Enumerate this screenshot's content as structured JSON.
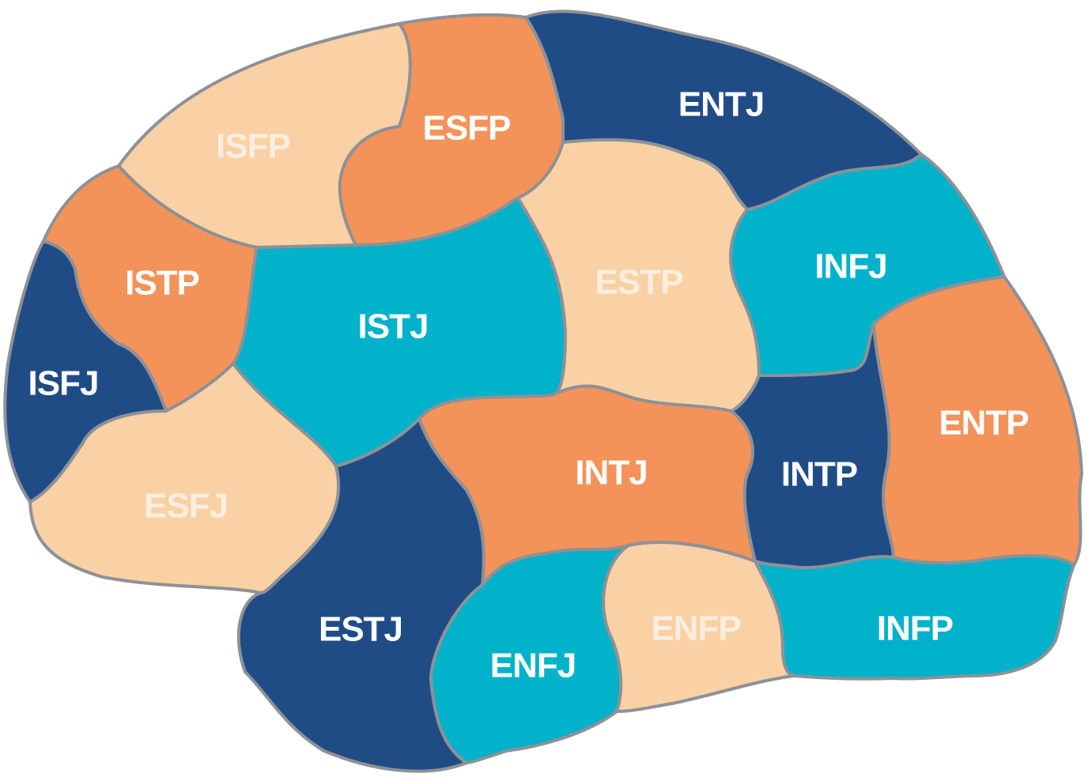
{
  "diagram": {
    "colors": {
      "navy": "#204c86",
      "cyan": "#01b2ca",
      "orange": "#f39359",
      "peach": "#f9d1a4",
      "outline": "#8e9196",
      "label_light": "#ffffff",
      "label_on_peach": "#fbeee0"
    },
    "regions": [
      {
        "key": "isfp",
        "label": "ISFP",
        "fill": "peach"
      },
      {
        "key": "esfp",
        "label": "ESFP",
        "fill": "orange"
      },
      {
        "key": "entj",
        "label": "ENTJ",
        "fill": "navy"
      },
      {
        "key": "istp",
        "label": "ISTP",
        "fill": "orange"
      },
      {
        "key": "istj",
        "label": "ISTJ",
        "fill": "cyan"
      },
      {
        "key": "estp",
        "label": "ESTP",
        "fill": "peach"
      },
      {
        "key": "infj",
        "label": "INFJ",
        "fill": "cyan"
      },
      {
        "key": "isfj",
        "label": "ISFJ",
        "fill": "navy"
      },
      {
        "key": "esfj",
        "label": "ESFJ",
        "fill": "peach"
      },
      {
        "key": "intj",
        "label": "INTJ",
        "fill": "orange"
      },
      {
        "key": "intp",
        "label": "INTP",
        "fill": "navy"
      },
      {
        "key": "entp",
        "label": "ENTP",
        "fill": "orange"
      },
      {
        "key": "estj",
        "label": "ESTJ",
        "fill": "navy"
      },
      {
        "key": "enfj",
        "label": "ENFJ",
        "fill": "cyan"
      },
      {
        "key": "enfp",
        "label": "ENFP",
        "fill": "peach"
      },
      {
        "key": "infp",
        "label": "INFP",
        "fill": "cyan"
      }
    ]
  }
}
